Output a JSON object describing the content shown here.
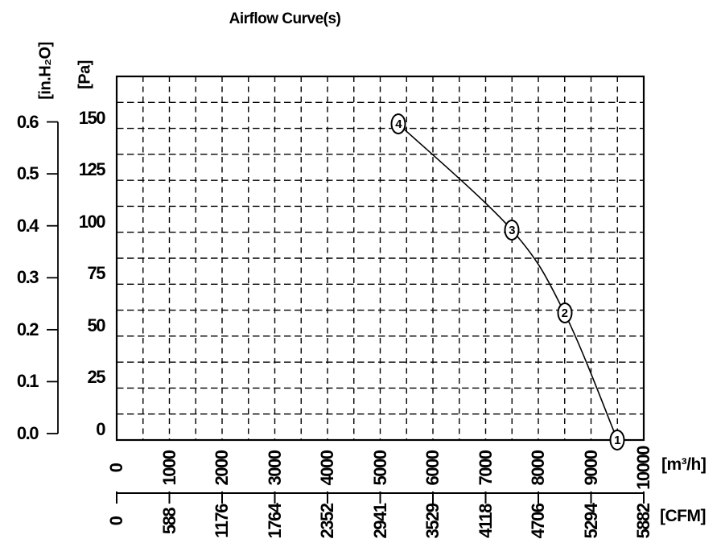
{
  "title": "Airflow Curve(s)",
  "chart_data": {
    "type": "line",
    "title": "Airflow Curve(s)",
    "grid": {
      "style": "dashed",
      "x_minor_step_m3h": 500,
      "y_minor_step_pa": 12.5
    },
    "x_axis_primary": {
      "unit_label": "[m³/h]",
      "min": 0,
      "max": 10000,
      "tick_step": 1000,
      "ticks": [
        "0",
        "1000",
        "2000",
        "3000",
        "4000",
        "5000",
        "6000",
        "7000",
        "8000",
        "9000",
        "10000"
      ]
    },
    "x_axis_secondary": {
      "unit_label": "[CFM]",
      "ticks": [
        "0",
        "588",
        "1176",
        "1764",
        "2352",
        "2941",
        "3529",
        "4118",
        "4706",
        "5294",
        "5882"
      ]
    },
    "y_axis_primary": {
      "unit_label": "[Pa]",
      "min": 0,
      "max": 150,
      "tick_step": 25,
      "ylim": [
        0,
        175
      ],
      "ticks": [
        "150",
        "125",
        "100",
        "75",
        "50",
        "25",
        "0"
      ]
    },
    "y_axis_secondary": {
      "unit_label": "[in.H₂O]",
      "min": 0.0,
      "max": 0.6,
      "tick_step": 0.1,
      "ticks": [
        "0.6",
        "0.5",
        "0.4",
        "0.3",
        "0.2",
        "0.1",
        "0.0"
      ]
    },
    "series": [
      {
        "name": "airflow-curve",
        "points": [
          {
            "label": "4",
            "m3h": 5350,
            "pa": 152
          },
          {
            "label": "3",
            "m3h": 7500,
            "pa": 101
          },
          {
            "label": "2",
            "m3h": 8500,
            "pa": 61
          },
          {
            "label": "1",
            "m3h": 9500,
            "pa": 0
          }
        ]
      }
    ]
  }
}
